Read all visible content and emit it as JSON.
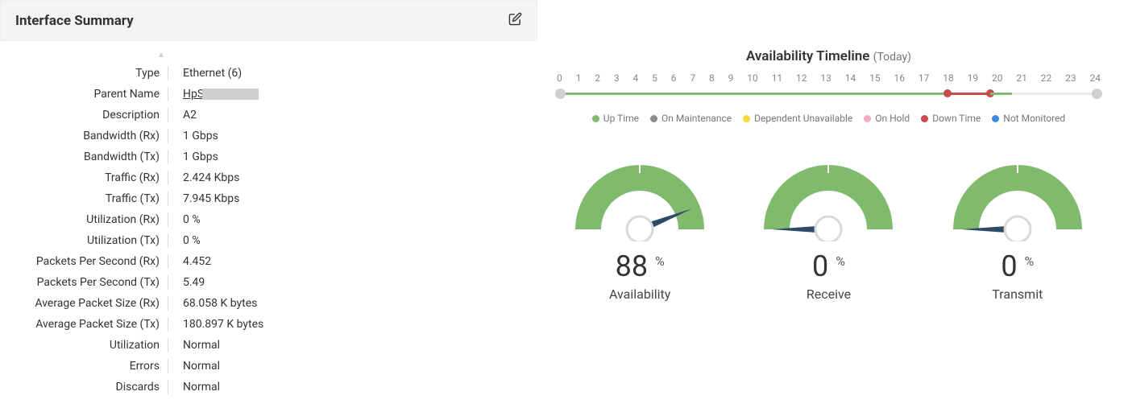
{
  "panel": {
    "title": "Interface Summary"
  },
  "props": [
    {
      "label": "Type",
      "value": "Ethernet (6)"
    },
    {
      "label": "Parent Name",
      "value": "HpS",
      "link": true,
      "redacted": true
    },
    {
      "label": "Description",
      "value": "A2"
    },
    {
      "label": "Bandwidth (Rx)",
      "value": "1 Gbps"
    },
    {
      "label": "Bandwidth (Tx)",
      "value": "1 Gbps"
    },
    {
      "label": "Traffic (Rx)",
      "value": "2.424 Kbps"
    },
    {
      "label": "Traffic (Tx)",
      "value": "7.945 Kbps"
    },
    {
      "label": "Utilization (Rx)",
      "value": "0 %"
    },
    {
      "label": "Utilization (Tx)",
      "value": "0 %"
    },
    {
      "label": "Packets Per Second (Rx)",
      "value": "4.452"
    },
    {
      "label": "Packets Per Second (Tx)",
      "value": "5.49"
    },
    {
      "label": "Average Packet Size (Rx)",
      "value": "68.058 K bytes"
    },
    {
      "label": "Average Packet Size (Tx)",
      "value": "180.897 K bytes"
    },
    {
      "label": "Utilization",
      "value": "Normal"
    },
    {
      "label": "Errors",
      "value": "Normal"
    },
    {
      "label": "Discards",
      "value": "Normal"
    }
  ],
  "timeline": {
    "title": "Availability Timeline",
    "subtitle": "(Today)",
    "ticks": [
      "0",
      "1",
      "2",
      "3",
      "4",
      "5",
      "6",
      "7",
      "8",
      "9",
      "10",
      "11",
      "12",
      "13",
      "14",
      "15",
      "16",
      "17",
      "18",
      "19",
      "20",
      "21",
      "22",
      "23",
      "24"
    ],
    "colors": {
      "up": "#7fba6d",
      "maintenance": "#8b8b8b",
      "dependent": "#f5d93a",
      "hold": "#f5a7c8",
      "down": "#c94a4a",
      "notmonitored": "#3a8dde",
      "track": "#e9e9e9",
      "endpoint": "#d0d0d0"
    },
    "segments": [
      {
        "from": 0,
        "to": 17.3,
        "status": "up"
      },
      {
        "from": 17.3,
        "to": 19.2,
        "status": "down"
      },
      {
        "from": 19.2,
        "to": 20.2,
        "status": "up"
      }
    ],
    "legend": [
      {
        "label": "Up Time",
        "key": "up"
      },
      {
        "label": "On Maintenance",
        "key": "maintenance"
      },
      {
        "label": "Dependent Unavailable",
        "key": "dependent"
      },
      {
        "label": "On Hold",
        "key": "hold"
      },
      {
        "label": "Down Time",
        "key": "down"
      },
      {
        "label": "Not Monitored",
        "key": "notmonitored"
      }
    ]
  },
  "gauges": {
    "arc_color": "#7fba6d",
    "arc_bg": "#ffffff",
    "needle_color": "#2e4a66",
    "hub_stroke": "#d9d9d9",
    "items": [
      {
        "label": "Availability",
        "value": 88,
        "unit": "%"
      },
      {
        "label": "Receive",
        "value": 0,
        "unit": "%"
      },
      {
        "label": "Transmit",
        "value": 0,
        "unit": "%"
      }
    ]
  }
}
